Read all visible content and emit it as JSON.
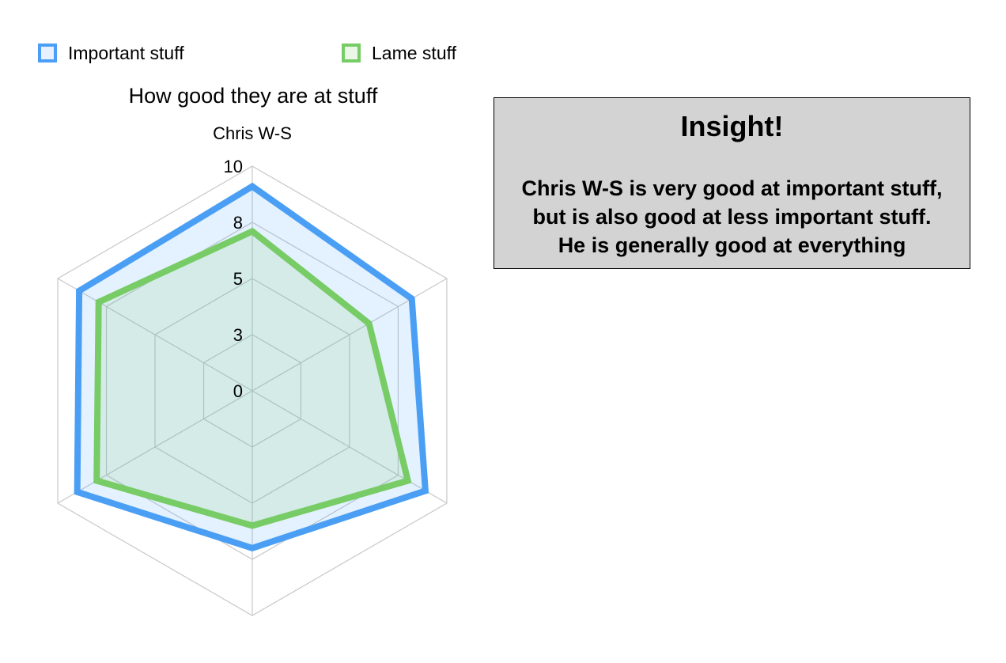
{
  "chart_data": {
    "type": "radar",
    "title": "How good they are at stuff",
    "axes": [
      "Chris W-S",
      "",
      "",
      "",
      "",
      ""
    ],
    "tick_labels": [
      "10",
      "8",
      "5",
      "3",
      "0"
    ],
    "ylim": [
      0,
      10
    ],
    "grid": true,
    "legend_position": "top-left",
    "series": [
      {
        "name": "Important stuff",
        "color": "#4a9ff5",
        "fill": "rgba(74,159,245,0.15)",
        "values": [
          9.1,
          8.2,
          8.9,
          7.0,
          9.0,
          8.9
        ]
      },
      {
        "name": "Lame stuff",
        "color": "#77cc66",
        "fill": "rgba(119,204,102,0.15)",
        "values": [
          7.1,
          6.0,
          8.0,
          6.0,
          8.0,
          7.9
        ]
      }
    ]
  },
  "insight": {
    "title": "Insight!",
    "lines": [
      "Chris W-S is very good at important stuff,",
      "but is also good at less important stuff.",
      "He is generally good at everything"
    ]
  }
}
